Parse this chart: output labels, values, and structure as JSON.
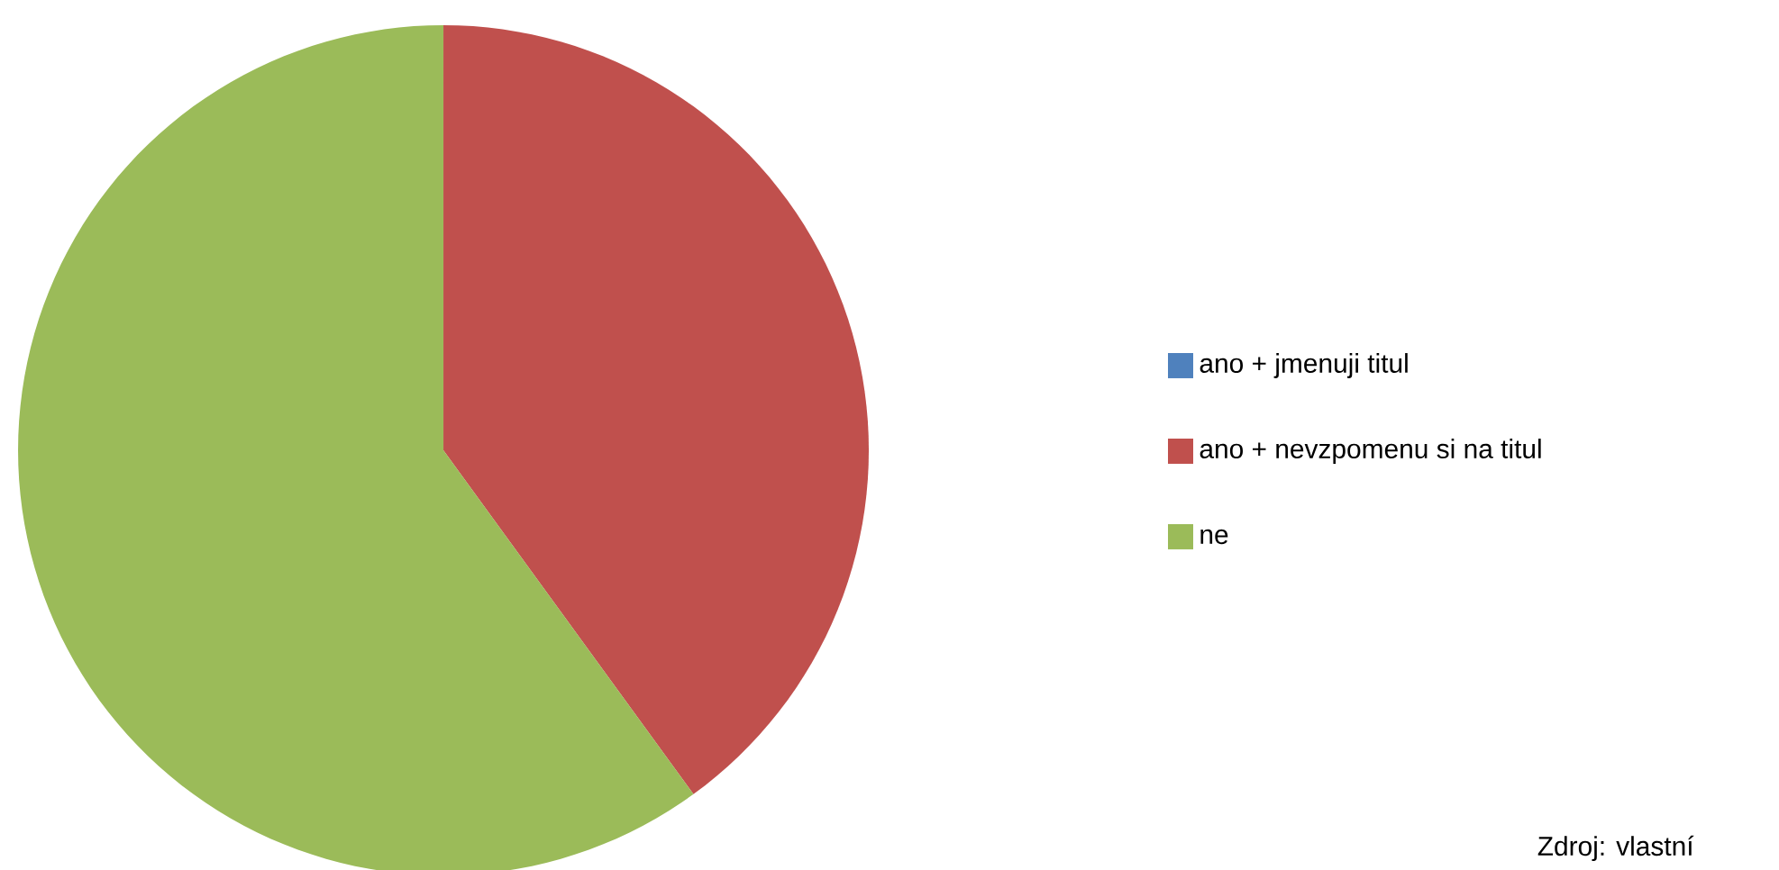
{
  "chart_data": {
    "type": "pie",
    "categories": [
      "ano + jmenuji titul",
      "ano + nevzpomenu si na titul",
      "ne"
    ],
    "values": [
      0,
      40,
      60
    ],
    "colors": [
      "#4f81bd",
      "#c0504d",
      "#9bbb59"
    ],
    "legend": "right",
    "annotations": [
      "Zdroj: vlastní"
    ]
  }
}
